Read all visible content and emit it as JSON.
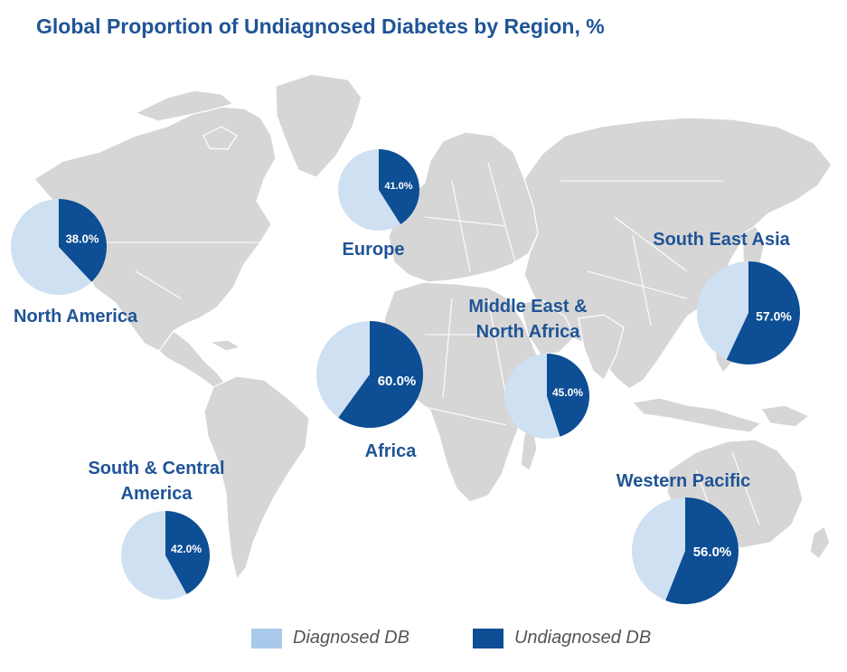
{
  "chart_data": {
    "type": "pie",
    "title": "Global Proportion of Undiagnosed Diabetes by Region, %",
    "legend": [
      {
        "name": "Diagnosed DB",
        "color": "#a9c9ea"
      },
      {
        "name": "Undiagnosed DB",
        "color": "#0d4e94"
      }
    ],
    "legend_placement": "bottom",
    "pies": [
      {
        "region_lines": [
          "North America"
        ],
        "undiagnosed": 38.0,
        "diagnosed": 62.0,
        "value_label": "38.0%"
      },
      {
        "region_lines": [
          "Europe"
        ],
        "undiagnosed": 41.0,
        "diagnosed": 59.0,
        "value_label": "41.0%"
      },
      {
        "region_lines": [
          "Africa"
        ],
        "undiagnosed": 60.0,
        "diagnosed": 40.0,
        "value_label": "60.0%"
      },
      {
        "region_lines": [
          "Middle East &",
          "North Africa"
        ],
        "undiagnosed": 45.0,
        "diagnosed": 55.0,
        "value_label": "45.0%"
      },
      {
        "region_lines": [
          "South East Asia"
        ],
        "undiagnosed": 57.0,
        "diagnosed": 43.0,
        "value_label": "57.0%"
      },
      {
        "region_lines": [
          "South & Central",
          "America"
        ],
        "undiagnosed": 42.0,
        "diagnosed": 58.0,
        "value_label": "42.0%"
      },
      {
        "region_lines": [
          "Western Pacific"
        ],
        "undiagnosed": 56.0,
        "diagnosed": 44.0,
        "value_label": "56.0%"
      }
    ]
  },
  "colors": {
    "diagnosed_fill": "#cfe0f2",
    "undiagnosed_fill": "#0d4e94",
    "title": "#1f5496",
    "land": "#d6d6d6"
  }
}
